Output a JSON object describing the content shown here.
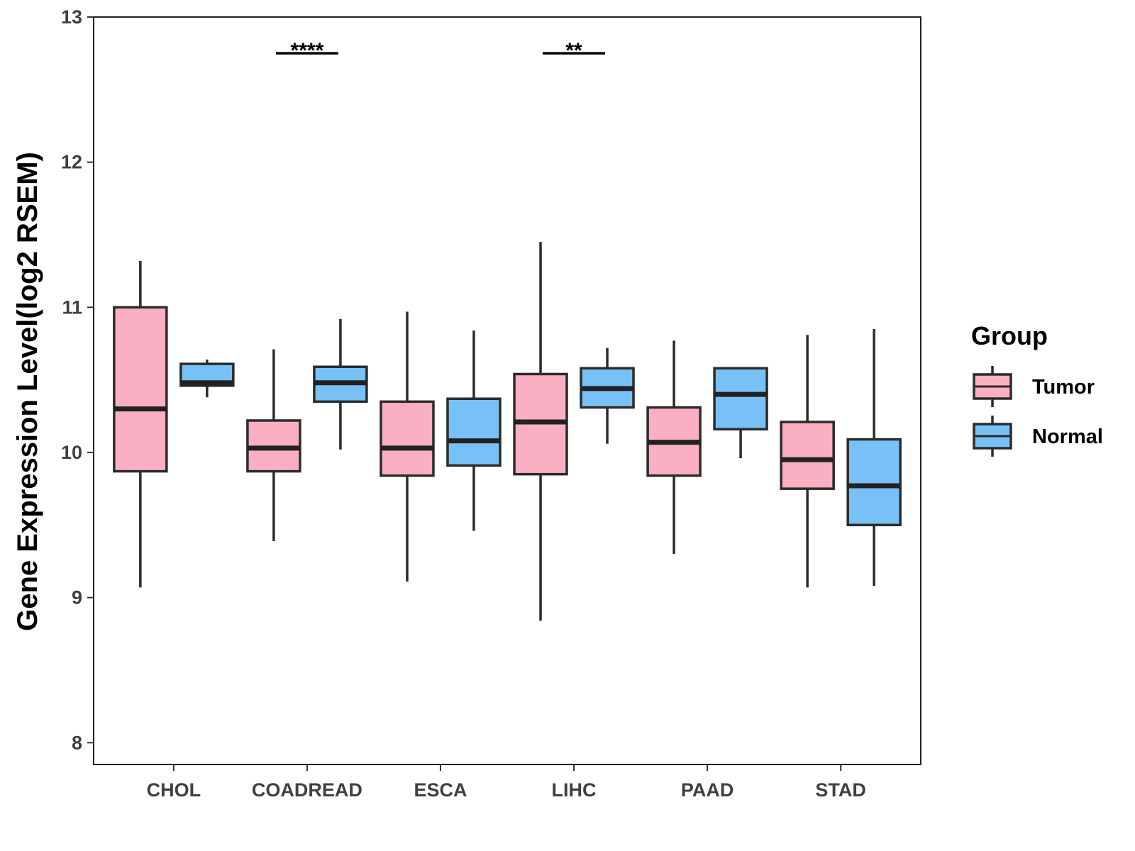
{
  "chart_data": {
    "type": "boxplot",
    "title": "",
    "xlabel": "",
    "ylabel": "Gene Expression Level(log2 RSEM)",
    "ylim": [
      7.85,
      13.0
    ],
    "yticks": [
      8,
      9,
      10,
      11,
      12,
      13
    ],
    "ytick_labels": [
      "8",
      "9",
      "10",
      "11",
      "12",
      "13"
    ],
    "grid": false,
    "categories": [
      "CHOL",
      "COADREAD",
      "ESCA",
      "LIHC",
      "PAAD",
      "STAD"
    ],
    "legend": {
      "title": "Group",
      "position": "right",
      "entries": [
        {
          "name": "Tumor",
          "color": "#FAAFC2"
        },
        {
          "name": "Normal",
          "color": "#78C1F7"
        }
      ]
    },
    "series": [
      {
        "name": "Tumor",
        "color": "#FAAFC2",
        "boxes": [
          {
            "category": "CHOL",
            "whisker_low": 9.07,
            "q1": 9.87,
            "median": 10.3,
            "q3": 11.0,
            "whisker_high": 11.32
          },
          {
            "category": "COADREAD",
            "whisker_low": 9.39,
            "q1": 9.87,
            "median": 10.03,
            "q3": 10.22,
            "whisker_high": 10.71
          },
          {
            "category": "ESCA",
            "whisker_low": 9.11,
            "q1": 9.84,
            "median": 10.03,
            "q3": 10.35,
            "whisker_high": 10.97
          },
          {
            "category": "LIHC",
            "whisker_low": 8.84,
            "q1": 9.85,
            "median": 10.21,
            "q3": 10.54,
            "whisker_high": 11.45
          },
          {
            "category": "PAAD",
            "whisker_low": 9.3,
            "q1": 9.84,
            "median": 10.07,
            "q3": 10.31,
            "whisker_high": 10.77
          },
          {
            "category": "STAD",
            "whisker_low": 9.07,
            "q1": 9.75,
            "median": 9.95,
            "q3": 10.21,
            "whisker_high": 10.81
          }
        ]
      },
      {
        "name": "Normal",
        "color": "#78C1F7",
        "boxes": [
          {
            "category": "CHOL",
            "whisker_low": 10.38,
            "q1": 10.46,
            "median": 10.48,
            "q3": 10.61,
            "whisker_high": 10.64
          },
          {
            "category": "COADREAD",
            "whisker_low": 10.02,
            "q1": 10.35,
            "median": 10.48,
            "q3": 10.59,
            "whisker_high": 10.92
          },
          {
            "category": "ESCA",
            "whisker_low": 9.46,
            "q1": 9.91,
            "median": 10.08,
            "q3": 10.37,
            "whisker_high": 10.84
          },
          {
            "category": "LIHC",
            "whisker_low": 10.06,
            "q1": 10.31,
            "median": 10.44,
            "q3": 10.58,
            "whisker_high": 10.72
          },
          {
            "category": "PAAD",
            "whisker_low": 9.96,
            "q1": 10.16,
            "median": 10.4,
            "q3": 10.58,
            "whisker_high": 10.58
          },
          {
            "category": "STAD",
            "whisker_low": 9.08,
            "q1": 9.5,
            "median": 9.77,
            "q3": 10.09,
            "whisker_high": 10.85
          }
        ]
      }
    ],
    "annotations": [
      {
        "category": "COADREAD",
        "label": "****",
        "y": 12.75
      },
      {
        "category": "LIHC",
        "label": "**",
        "y": 12.75
      }
    ]
  }
}
